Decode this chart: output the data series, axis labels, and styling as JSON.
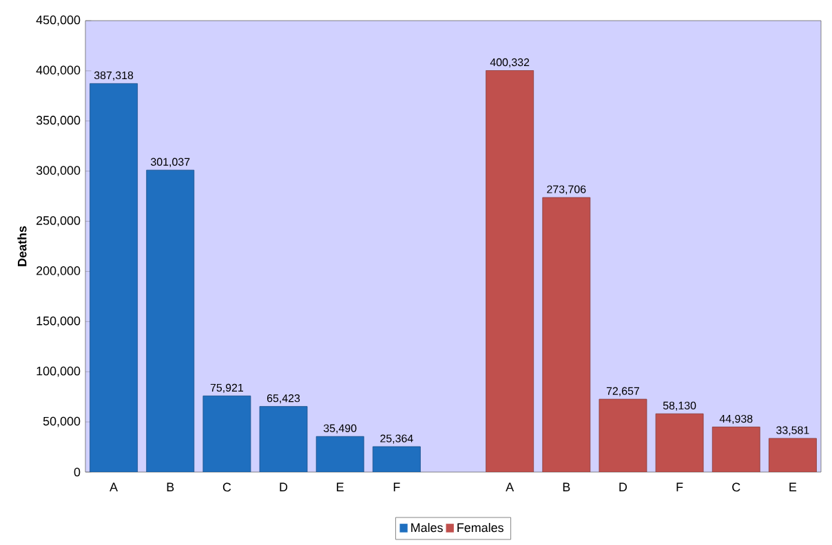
{
  "chart_data": {
    "type": "bar",
    "ylabel": "Deaths",
    "categories": [
      "A",
      "B",
      "C",
      "D",
      "E",
      "F",
      null,
      "A",
      "B",
      "D",
      "F",
      "C",
      "E"
    ],
    "series": [
      {
        "name": "Males",
        "color": "#1f6fbf",
        "values": [
          387318,
          301037,
          75921,
          65423,
          35490,
          25364,
          null,
          null,
          null,
          null,
          null,
          null,
          null
        ],
        "value_labels": [
          "387,318",
          "301,037",
          "75,921",
          "65,423",
          "35,490",
          "25,364",
          null,
          null,
          null,
          null,
          null,
          null,
          null
        ]
      },
      {
        "name": "Females",
        "color": "#c0504d",
        "values": [
          null,
          null,
          null,
          null,
          null,
          null,
          null,
          400332,
          273706,
          72657,
          58130,
          44938,
          33581
        ],
        "value_labels": [
          null,
          null,
          null,
          null,
          null,
          null,
          null,
          "400,332",
          "273,706",
          "72,657",
          "58,130",
          "44,938",
          "33,581"
        ]
      }
    ],
    "ylim": [
      0,
      450000
    ],
    "yticks": [
      {
        "value": 0,
        "label": "0"
      },
      {
        "value": 50000,
        "label": "50,000"
      },
      {
        "value": 100000,
        "label": "100,000"
      },
      {
        "value": 150000,
        "label": "150,000"
      },
      {
        "value": 200000,
        "label": "200,000"
      },
      {
        "value": 250000,
        "label": "250,000"
      },
      {
        "value": 300000,
        "label": "300,000"
      },
      {
        "value": 350000,
        "label": "350,000"
      },
      {
        "value": 400000,
        "label": "400,000"
      },
      {
        "value": 450000,
        "label": "450,000"
      }
    ],
    "grid": false,
    "legend": "bottom"
  }
}
